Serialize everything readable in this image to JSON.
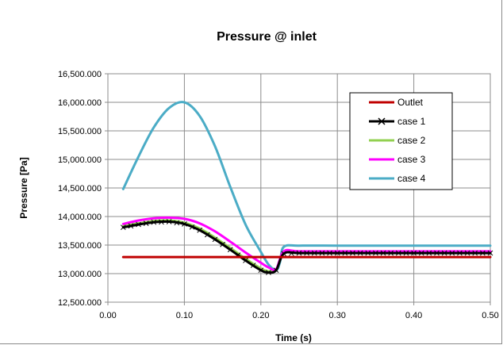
{
  "chart_data": {
    "type": "line",
    "title": "Pressure @ inlet",
    "xlabel": "Time (s)",
    "ylabel": "Pressure [Pa]",
    "xlim": [
      0.0,
      0.5
    ],
    "ylim": [
      12500,
      16500
    ],
    "xticks": [
      0.0,
      0.1,
      0.2,
      0.3,
      0.4,
      0.5
    ],
    "yticks": [
      12500,
      13000,
      13500,
      14000,
      14500,
      15000,
      15500,
      16000,
      16500
    ],
    "xtick_labels": [
      "0.00",
      "0.10",
      "0.20",
      "0.30",
      "0.40",
      "0.50"
    ],
    "ytick_labels": [
      "12,500.000",
      "13,000.000",
      "13,500.000",
      "14,000.000",
      "14,500.000",
      "15,000.000",
      "15,500.000",
      "16,000.000",
      "16,500.000"
    ],
    "grid": true,
    "legend_position": "top-right",
    "series": [
      {
        "name": "Outlet",
        "color": "#c00000",
        "marker": "none",
        "x": [
          0.02,
          0.5
        ],
        "y": [
          13290,
          13290
        ]
      },
      {
        "name": "case 1",
        "color": "#000000",
        "marker": "x",
        "x": [
          0.02,
          0.04,
          0.06,
          0.08,
          0.1,
          0.12,
          0.14,
          0.16,
          0.18,
          0.2,
          0.21,
          0.22,
          0.23,
          0.25,
          0.3,
          0.35,
          0.4,
          0.45,
          0.5
        ],
        "y": [
          13810,
          13860,
          13900,
          13910,
          13870,
          13760,
          13600,
          13420,
          13230,
          13060,
          13020,
          13060,
          13350,
          13360,
          13360,
          13360,
          13360,
          13360,
          13360
        ]
      },
      {
        "name": "case 2",
        "color": "#92d050",
        "marker": "none",
        "x": [
          0.02,
          0.04,
          0.06,
          0.08,
          0.1,
          0.12,
          0.14,
          0.16,
          0.18,
          0.2,
          0.21,
          0.22,
          0.23,
          0.25,
          0.3,
          0.35,
          0.4,
          0.45,
          0.5
        ],
        "y": [
          13830,
          13880,
          13920,
          13930,
          13890,
          13790,
          13630,
          13450,
          13260,
          13090,
          13040,
          13060,
          13360,
          13370,
          13370,
          13370,
          13370,
          13370,
          13370
        ]
      },
      {
        "name": "case 3",
        "color": "#ff00ff",
        "marker": "none",
        "x": [
          0.02,
          0.04,
          0.06,
          0.08,
          0.1,
          0.12,
          0.14,
          0.16,
          0.18,
          0.2,
          0.21,
          0.22,
          0.23,
          0.25,
          0.3,
          0.35,
          0.4,
          0.45,
          0.5
        ],
        "y": [
          13870,
          13930,
          13970,
          13980,
          13960,
          13880,
          13740,
          13560,
          13370,
          13190,
          13110,
          13080,
          13390,
          13390,
          13390,
          13390,
          13390,
          13390,
          13390
        ]
      },
      {
        "name": "case 4",
        "color": "#4bacc6",
        "marker": "none",
        "x": [
          0.02,
          0.04,
          0.06,
          0.08,
          0.1,
          0.12,
          0.14,
          0.16,
          0.18,
          0.2,
          0.21,
          0.22,
          0.225,
          0.23,
          0.25,
          0.3,
          0.35,
          0.4,
          0.45,
          0.5
        ],
        "y": [
          14480,
          15050,
          15560,
          15900,
          16000,
          15760,
          15230,
          14520,
          13860,
          13380,
          13160,
          13060,
          13200,
          13470,
          13490,
          13490,
          13490,
          13490,
          13490,
          13490
        ]
      }
    ]
  }
}
